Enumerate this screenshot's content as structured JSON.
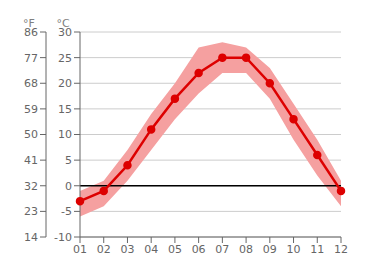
{
  "chart_data": {
    "type": "line",
    "categories": [
      "01",
      "02",
      "03",
      "04",
      "05",
      "06",
      "07",
      "08",
      "09",
      "10",
      "11",
      "12"
    ],
    "series": [
      {
        "type": "area",
        "color": "#f5a0a0",
        "low": [
          -6,
          -4,
          1,
          7,
          13,
          18,
          22,
          22,
          17,
          9,
          2,
          -4
        ],
        "high": [
          -1,
          1,
          7,
          14,
          20,
          27,
          28,
          27,
          23,
          16,
          9,
          1
        ]
      },
      {
        "type": "line",
        "color": "#dd0000",
        "marker": "circle",
        "values": [
          -3,
          -1,
          4,
          11,
          17,
          22,
          25,
          25,
          20,
          13,
          6,
          -1
        ]
      }
    ],
    "ylim": [
      -10,
      30
    ],
    "yticks": [
      -10,
      -5,
      0,
      5,
      10,
      15,
      20,
      25,
      30
    ],
    "y_label": "°C",
    "y2lim": [
      14,
      86
    ],
    "y2ticks": [
      14,
      23,
      32,
      41,
      50,
      59,
      68,
      77,
      86
    ],
    "y2_label": "°F",
    "reference_lines": [
      {
        "value": 0,
        "color": "#000000"
      }
    ],
    "grid": true
  }
}
